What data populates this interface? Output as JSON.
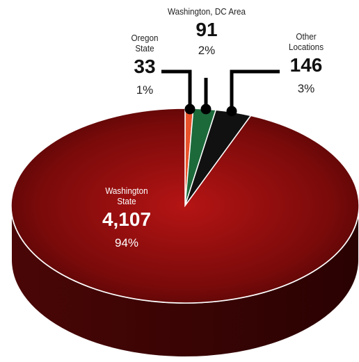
{
  "chart_data": {
    "type": "pie",
    "categories": [
      "Oregon State",
      "Washington, DC Area",
      "Other Locations",
      "Washington State"
    ],
    "values": [
      33,
      91,
      146,
      4107
    ],
    "value_labels": [
      "33",
      "91",
      "146",
      "4,107"
    ],
    "percentages": [
      1,
      2,
      3,
      94
    ],
    "percentage_labels": [
      "1%",
      "2%",
      "3%",
      "94%"
    ],
    "colors": [
      "#e8522b",
      "#1c6a3a",
      "#111111",
      "#9e0f0f"
    ]
  }
}
